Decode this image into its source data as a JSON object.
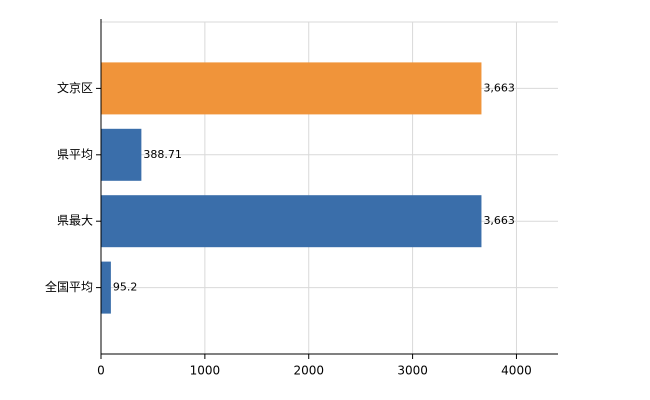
{
  "chart_data": {
    "type": "bar",
    "orientation": "horizontal",
    "categories": [
      "文京区",
      "県平均",
      "県最大",
      "全国平均"
    ],
    "values": [
      3663,
      388.71,
      3663,
      95.2
    ],
    "value_labels": [
      "3,663",
      "388.71",
      "3,663",
      "95.2"
    ],
    "colors": [
      "#f0943a",
      "#3a6eaa",
      "#3a6eaa",
      "#3a6eaa"
    ],
    "xlim": [
      0,
      4400
    ],
    "xticks": [
      0,
      1000,
      2000,
      3000,
      4000
    ],
    "grid": true
  }
}
